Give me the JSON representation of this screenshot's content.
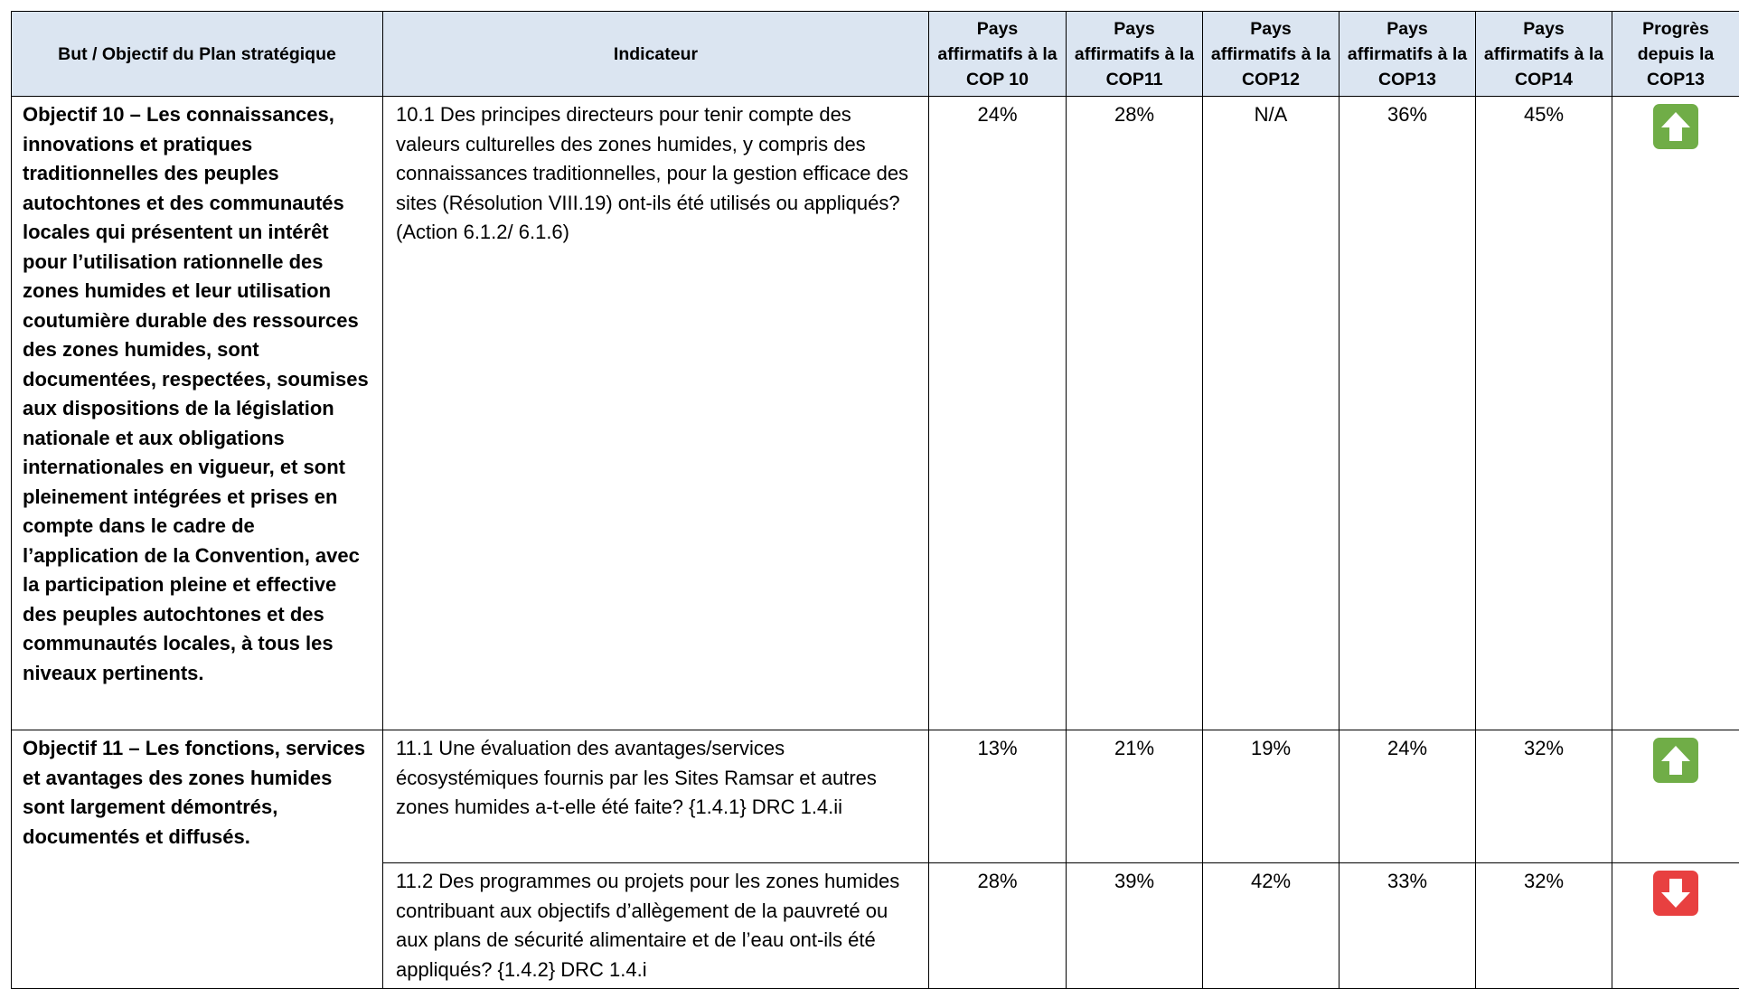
{
  "headers": {
    "goal": "But / Objectif du Plan stratégique",
    "indicator": "Indicateur",
    "cop10": "Pays affirmatifs à la COP 10",
    "cop11": "Pays affirmatifs à la COP11",
    "cop12": "Pays affirmatifs à la COP12",
    "cop13": "Pays affirmatifs à la COP13",
    "cop14": "Pays affirmatifs à la COP14",
    "progress": "Progrès depuis la COP13"
  },
  "rows": [
    {
      "goal": "Objectif 10 – Les connaissances, innovations et pratiques traditionnelles des peuples autochtones et des communautés locales qui présentent un intérêt pour l’utilisation rationnelle des zones humides et leur utilisation coutumière durable des ressources des zones humides, sont documentées, respectées, soumises aux dispositions de la législation nationale et aux obligations internationales en vigueur, et sont pleinement intégrées et prises en compte dans le cadre de l’application de la Convention, avec la participation pleine et effective des peuples autochtones et des communautés locales, à tous les niveaux pertinents.",
      "indicator": "10.1 Des principes directeurs pour tenir compte des valeurs culturelles des zones humides, y compris des connaissances traditionnelles, pour la gestion efficace des sites (Résolution VIII.19) ont-ils été utilisés ou appliqués? (Action 6.1.2/ 6.1.6)",
      "cop10": "24%",
      "cop11": "28%",
      "cop12": "N/A",
      "cop13": "36%",
      "cop14": "45%",
      "progress": "up-arrow-icon",
      "progress_color": "#70ad47"
    },
    {
      "goal": "Objectif 11 – Les fonctions, services et avantages des zones humides sont largement démontrés, documentés et diffusés.",
      "indicator": "11.1 Une évaluation des avantages/services écosystémiques fournis par les Sites Ramsar et autres zones humides a-t-elle été faite? {1.4.1} DRC 1.4.ii",
      "cop10": "13%",
      "cop11": "21%",
      "cop12": "19%",
      "cop13": "24%",
      "cop14": "32%",
      "progress": "up-arrow-icon",
      "progress_color": "#70ad47"
    },
    {
      "indicator": "11.2 Des programmes ou projets pour les zones humides contribuant aux objectifs d’allègement de la pauvreté ou aux plans de sécurité alimentaire et de l’eau ont-ils été appliqués? {1.4.2} DRC 1.4.i",
      "cop10": "28%",
      "cop11": "39%",
      "cop12": "42%",
      "cop13": "33%",
      "cop14": "32%",
      "progress": "down-arrow-icon",
      "progress_color": "#e84040"
    }
  ]
}
